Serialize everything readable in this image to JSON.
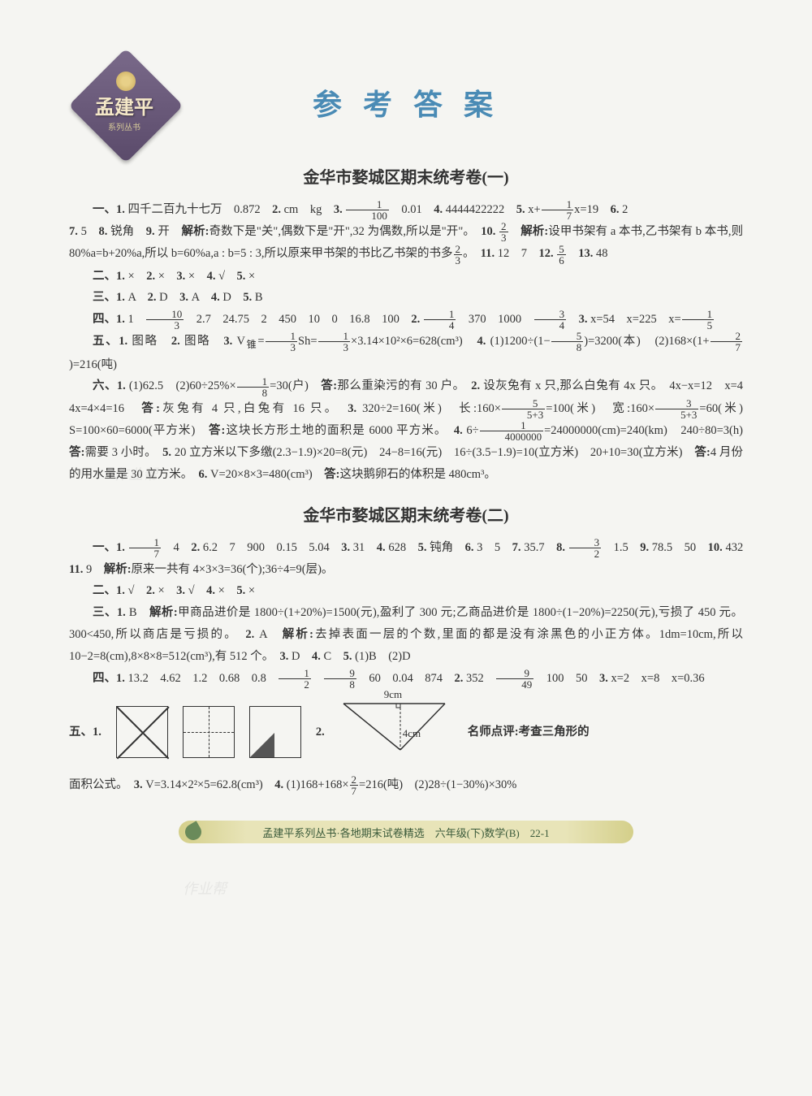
{
  "logo": {
    "name": "孟建平",
    "sub": "系列丛书"
  },
  "main_title": "参 考 答 案",
  "section1": {
    "title": "金华市婺城区期末统考卷(一)",
    "lines": [
      "一、1. 四千二百九十七万　0.872　2. cm　kg　3. <frac>1|100</frac>　0.01　4. 4444422222　5. x+<frac>1|7</frac>x=19　6. 2",
      "7. 5　8. 锐角　9. 开　解析:奇数下是\"关\",偶数下是\"开\",32 为偶数,所以是\"开\"。　10. <frac>2|3</frac>　解析:设甲书架有 a 本书,乙书架有 b 本书,则 80%a=b+20%a,所以 b=60%a,a : b=5 : 3,所以原来甲书架的书比乙书架的书多<frac>2|3</frac>。　11. 12　7　12. <frac>5|6</frac>　13. 48",
      "二、1. ×　2. ×　3. ×　4. √　5. ×",
      "三、1. A　2. D　3. A　4. D　5. B",
      "四、1. 1　<frac>10|3</frac>　2.7　24.75　2　450　10　0　16.8　100　2. <frac>1|4</frac>　370　1000　<frac>3|4</frac>　3. x=54　x=225　x=<frac>1|5</frac>",
      "五、1. 图略　2. 图略　3. V<sub>锥</sub>=<frac>1|3</frac>Sh=<frac>1|3</frac>×3.14×10²×6=628(cm³)　4. (1)1200÷(1−<frac>5|8</frac>)=3200(本)　(2)168×(1+<frac>2|7</frac>)=216(吨)",
      "六、1. (1)62.5　(2)60÷25%×<frac>1|8</frac>=30(户)　答:那么重染污的有 30 户。　2. 设灰兔有 x 只,那么白兔有 4x 只。　4x−x=12　x=4　4x=4×4=16　答:灰兔有 4 只,白兔有 16 只。　3. 320÷2=160(米)　长:160×<frac>5|5+3</frac>=100(米)　宽:160×<frac>3|5+3</frac>=60(米)　S=100×60=6000(平方米)　答:这块长方形土地的面积是 6000 平方米。　4. 6÷<frac>1|4000000</frac>=24000000(cm)=240(km)　240÷80=3(h)　答:需要 3 小时。　5. 20 立方米以下多缴(2.3−1.9)×20=8(元)　24−8=16(元)　16÷(3.5−1.9)=10(立方米)　20+10=30(立方米)　答:4 月份的用水量是 30 立方米。　6. V=20×8×3=480(cm³)　答:这块鹅卵石的体积是 480cm³。"
    ]
  },
  "section2": {
    "title": "金华市婺城区期末统考卷(二)",
    "lines": [
      "一、1. <frac>1|7</frac>　4　2. 6.2　7　900　0.15　5.04　3. 31　4. 628　5. 钝角　6. 3　5　7. 35.7　8. <frac>3|2</frac>　1.5　9. 78.5　50　10. 432　11. 9　解析:原来一共有 4×3×3=36(个);36÷4=9(层)。",
      "二、1. √　2. ×　3. √　4. ×　5. ×",
      "三、1. B　解析:甲商品进价是 1800÷(1+20%)=1500(元),盈利了 300 元;乙商品进价是 1800÷(1−20%)=2250(元),亏损了 450 元。300<450,所以商店是亏损的。　2. A　解析:去掉表面一层的个数,里面的都是没有涂黑色的小正方体。1dm=10cm,所以 10−2=8(cm),8×8×8=512(cm³),有 512 个。　3. D　4. C　5. (1)B　(2)D",
      "四、1. 13.2　4.62　1.2　0.68　0.8　<frac>1|2</frac>　<frac>9|8</frac>　60　0.04　874　2. 352　<frac>9|49</frac>　100　50　3. x=2　x=8　x=0.36"
    ],
    "diagram_prefix": "五、1.",
    "diagram_num2": "2.",
    "tri_top": "9cm",
    "tri_mid": "4cm",
    "diagram_comment": "名师点评:考查三角形的",
    "line_after": "面积公式。　3. V=3.14×2²×5=62.8(cm³)　4. (1)168+168×<frac>2|7</frac>=216(吨)　(2)28÷(1−30%)×30%"
  },
  "footer": "孟建平系列丛书·各地期末试卷精选　六年级(下)数学(B)　22-1",
  "colors": {
    "title_color": "#4a8bb5",
    "text_color": "#333333",
    "bg": "#f5f5f2",
    "logo_bg": "#5a4a6a",
    "footer_bg": "#e8e4b8"
  }
}
